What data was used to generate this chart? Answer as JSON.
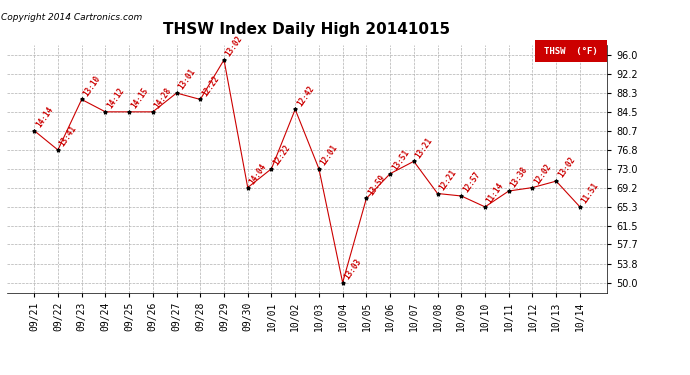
{
  "title": "THSW Index Daily High 20141015",
  "copyright": "Copyright 2014 Cartronics.com",
  "legend_label": "THSW  (°F)",
  "dates": [
    "09/21",
    "09/22",
    "09/23",
    "09/24",
    "09/25",
    "09/26",
    "09/27",
    "09/28",
    "09/29",
    "09/30",
    "10/01",
    "10/02",
    "10/03",
    "10/04",
    "10/05",
    "10/06",
    "10/07",
    "10/08",
    "10/09",
    "10/10",
    "10/11",
    "10/12",
    "10/13",
    "10/14"
  ],
  "values": [
    80.7,
    76.8,
    87.0,
    84.5,
    84.5,
    84.5,
    88.3,
    87.0,
    95.0,
    69.2,
    73.0,
    85.0,
    73.0,
    50.0,
    67.0,
    72.0,
    74.5,
    68.0,
    67.5,
    65.3,
    68.5,
    69.2,
    70.5,
    65.3
  ],
  "time_labels": [
    "14:14",
    "13:41",
    "13:10",
    "14:12",
    "14:15",
    "14:28",
    "13:01",
    "12:22",
    "13:02",
    "14:04",
    "12:22",
    "12:42",
    "12:01",
    "13:03",
    "13:59",
    "13:51",
    "13:21",
    "12:21",
    "12:57",
    "11:14",
    "13:38",
    "12:02",
    "13:02",
    "11:51"
  ],
  "line_color": "#cc0000",
  "marker_color": "#000000",
  "background_color": "#ffffff",
  "grid_color": "#b0b0b0",
  "yticks": [
    50.0,
    53.8,
    57.7,
    61.5,
    65.3,
    69.2,
    73.0,
    76.8,
    80.7,
    84.5,
    88.3,
    92.2,
    96.0
  ],
  "ylim": [
    48.0,
    98.0
  ],
  "title_fontsize": 11,
  "tick_fontsize": 7,
  "label_rotation": 55
}
